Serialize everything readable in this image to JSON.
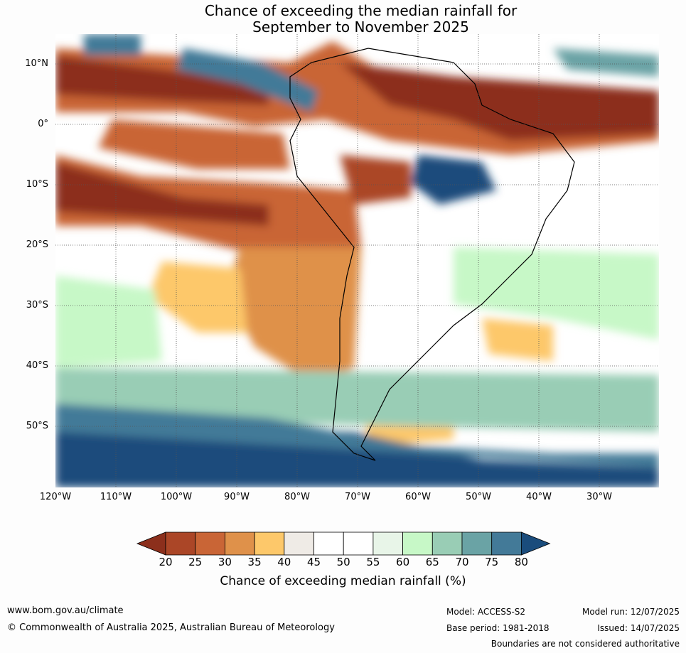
{
  "title": {
    "line1": "Chance of exceeding the median rainfall for",
    "line2": "September to November 2025"
  },
  "map": {
    "lat_labels": [
      "10°N",
      "0°",
      "10°S",
      "20°S",
      "30°S",
      "40°S",
      "50°S"
    ],
    "lon_labels": [
      "120°W",
      "110°W",
      "100°W",
      "90°W",
      "80°W",
      "70°W",
      "60°W",
      "50°W",
      "40°W",
      "30°W"
    ]
  },
  "colorbar": {
    "label": "Chance of exceeding median rainfall (%)",
    "ticks": [
      "20",
      "25",
      "30",
      "35",
      "40",
      "45",
      "50",
      "55",
      "60",
      "65",
      "70",
      "75",
      "80"
    ],
    "colors": [
      "#8c2f1c",
      "#ab4627",
      "#c96536",
      "#df914a",
      "#fdc86a",
      "#efebe6",
      "#ffffff",
      "#ffffff",
      "#e8f5e8",
      "#c7f8c7",
      "#99cdb5",
      "#6aa3a5",
      "#437a98",
      "#1a4c7c"
    ]
  },
  "footer": {
    "website": "www.bom.gov.au/climate",
    "copyright": "© Commonwealth of Australia 2025, Australian Bureau of Meteorology",
    "model": "Model: ACCESS-S2",
    "base_period": "Base period: 1981-2018",
    "model_run": "Model run: 12/07/2025",
    "issued": "Issued: 14/07/2025",
    "disclaimer": "Boundaries are not considered authoritative"
  }
}
